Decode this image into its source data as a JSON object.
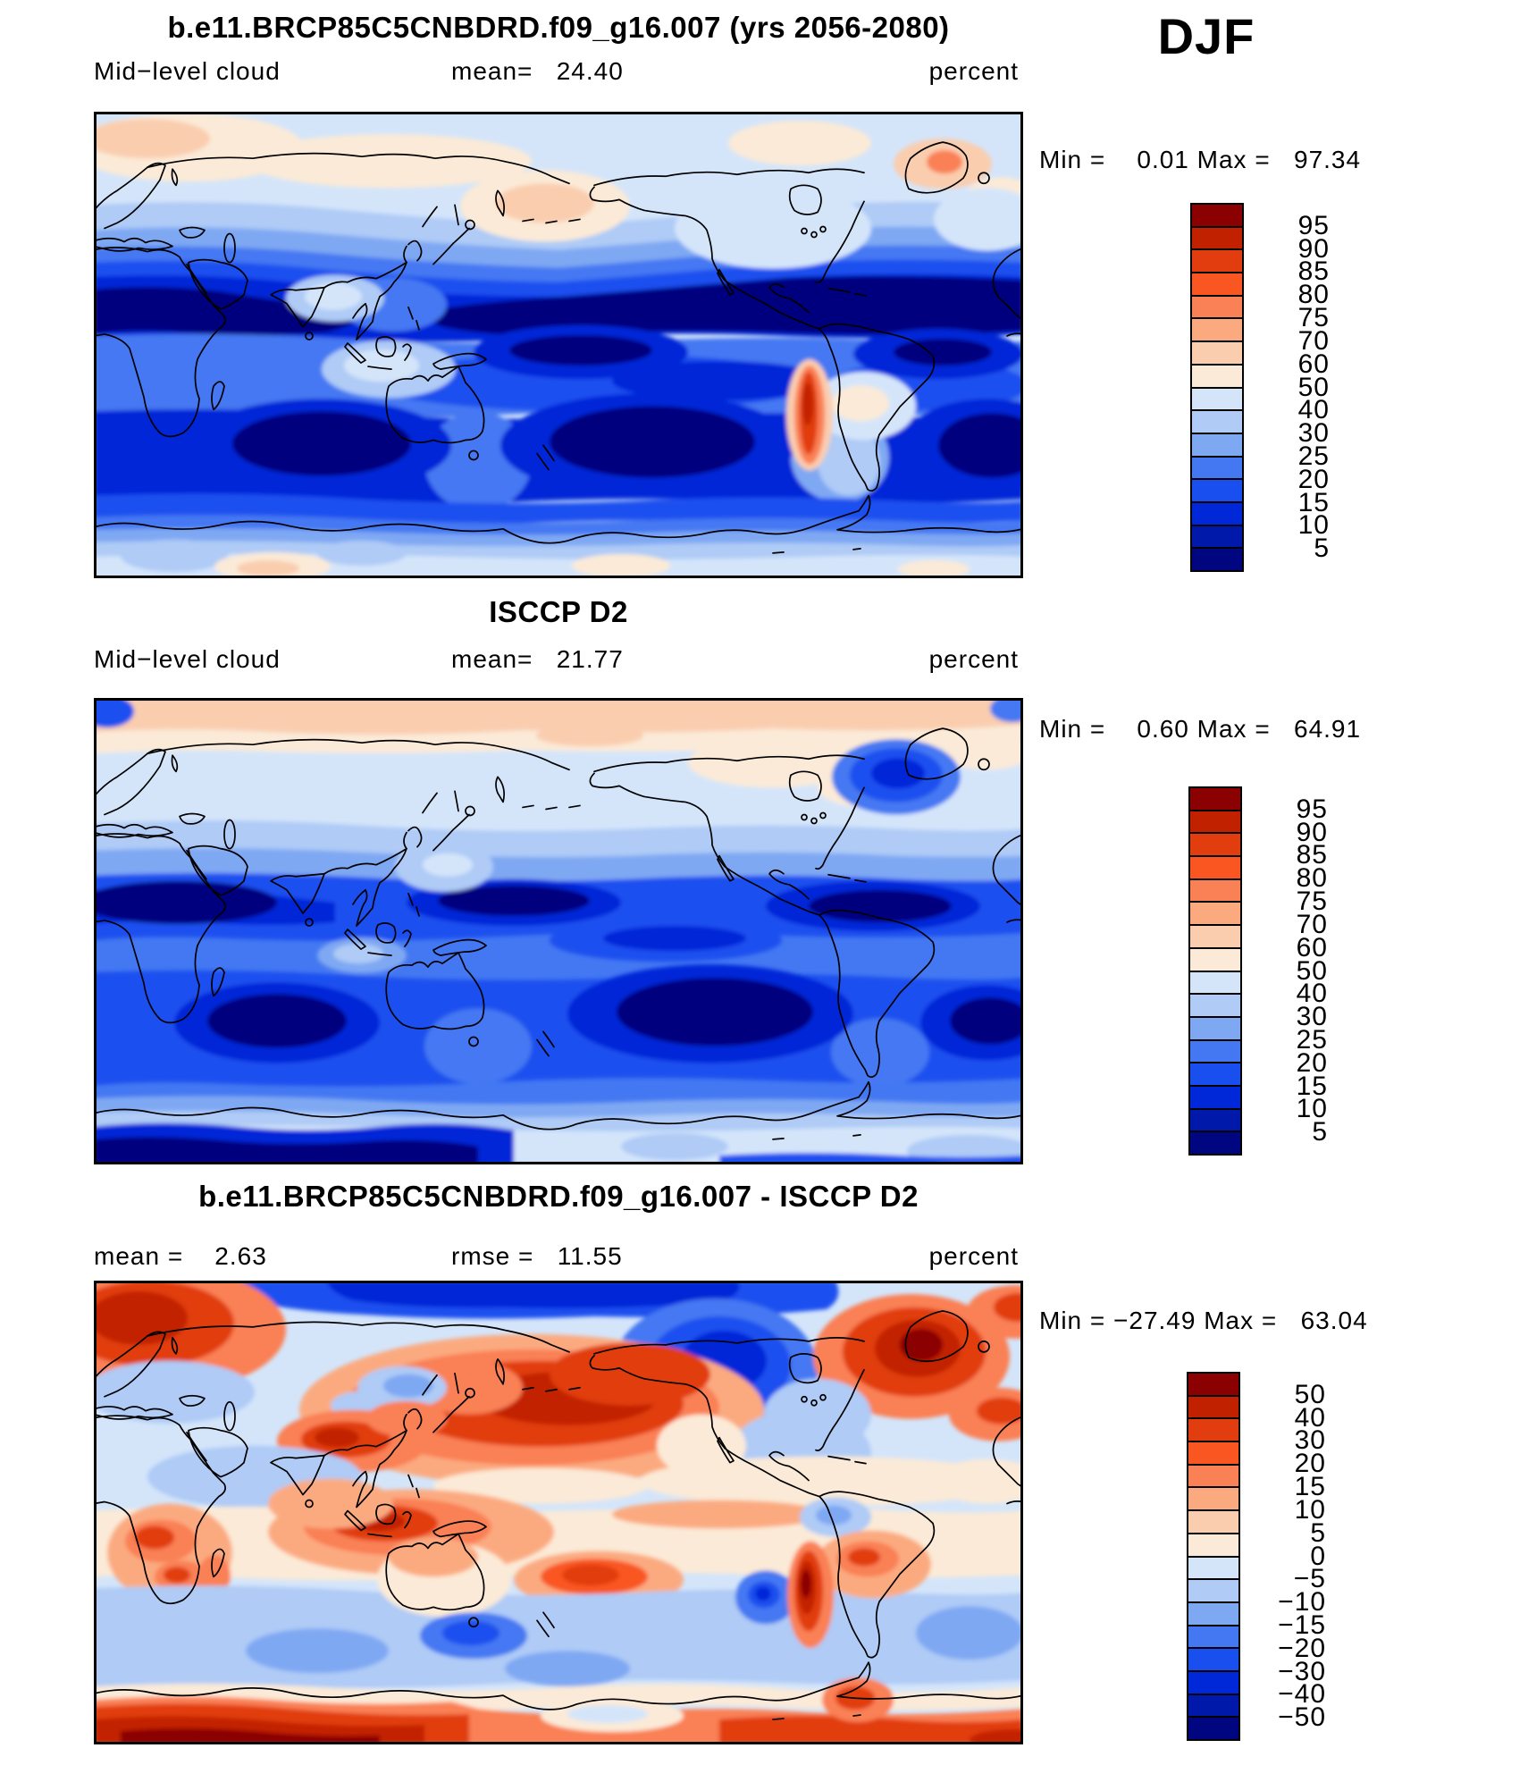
{
  "header": {
    "season": "DJF"
  },
  "panels": [
    {
      "title": "b.e11.BRCP85C5CNBDRD.f09_g16.007 (yrs 2056-2080)",
      "row_left": "Mid−level cloud",
      "row_mid": "mean=   24.40",
      "row_right": "percent",
      "minmax": "Min =    0.01 Max =   97.34",
      "colorbar_labels": [
        "95",
        "90",
        "85",
        "80",
        "75",
        "70",
        "60",
        "50",
        "40",
        "30",
        "25",
        "20",
        "15",
        "10",
        "5"
      ]
    },
    {
      "title": "ISCCP D2",
      "row_left": "Mid−level cloud",
      "row_mid": "mean=   21.77",
      "row_right": "percent",
      "minmax": "Min =    0.60 Max =   64.91",
      "colorbar_labels": [
        "95",
        "90",
        "85",
        "80",
        "75",
        "70",
        "60",
        "50",
        "40",
        "30",
        "25",
        "20",
        "15",
        "10",
        "5"
      ]
    },
    {
      "title": "b.e11.BRCP85C5CNBDRD.f09_g16.007 - ISCCP D2",
      "row_left": "mean =    2.63",
      "row_mid": "rmse =   11.55",
      "row_right": "percent",
      "minmax": "Min = −27.49 Max =   63.04",
      "colorbar_labels": [
        "50",
        "40",
        "30",
        "20",
        "15",
        "10",
        "5",
        "0",
        "−5",
        "−10",
        "−15",
        "−20",
        "−30",
        "−40",
        "−50"
      ]
    }
  ],
  "palette_high_to_low": [
    "#8B0000",
    "#C22100",
    "#E13D0F",
    "#F95621",
    "#FA8055",
    "#FBAA80",
    "#FACDAF",
    "#FBEAD7",
    "#D4E5FA",
    "#AFCBF6",
    "#7FA8F3",
    "#4478F2",
    "#1A4FEF",
    "#0128D8",
    "#0119AB",
    "#00067F"
  ],
  "chart_data": [
    {
      "type": "heatmap",
      "subtype": "global-latlon-filled-contour-map",
      "title": "b.e11.BRCP85C5CNBDRD.f09_g16.007 (yrs 2056-2080)",
      "variable": "Mid-level cloud",
      "season": "DJF",
      "units": "percent",
      "mean": 24.4,
      "min": 0.01,
      "max": 97.34,
      "contour_levels": [
        5,
        10,
        15,
        20,
        25,
        30,
        40,
        50,
        60,
        70,
        75,
        80,
        85,
        90,
        95
      ],
      "legend_position": "right",
      "projection": "cylindrical equidistant, lon 0-360E, lat 90N-90S",
      "notes": "Mostly blue (5-40%): deep navy subtropical minima over both hemispheres' ocean basins; pale/peach highs in Arctic, North Pacific and along Antarctic coast; bright red maximum (>85%) over the Andes."
    },
    {
      "type": "heatmap",
      "subtype": "global-latlon-filled-contour-map",
      "title": "ISCCP D2",
      "variable": "Mid-level cloud",
      "season": "DJF",
      "units": "percent",
      "mean": 21.77,
      "min": 0.6,
      "max": 64.91,
      "contour_levels": [
        5,
        10,
        15,
        20,
        25,
        30,
        40,
        50,
        60,
        70,
        75,
        80,
        85,
        90,
        95
      ],
      "legend_position": "right",
      "projection": "cylindrical equidistant, lon 0-360E, lat 90N-90S",
      "notes": "Peach band (50-60%) across the Arctic top edge; broad medium blues elsewhere; navy minima over N Africa/Arabia, central Pacific, Caribbean and southern ocean basins; navy band along Antarctic coast with pale interior."
    },
    {
      "type": "heatmap",
      "subtype": "global-latlon-filled-contour-difference-map",
      "title": "b.e11.BRCP85C5CNBDRD.f09_g16.007 - ISCCP D2",
      "variable": "Mid-level cloud difference",
      "season": "DJF",
      "units": "percent",
      "mean": 2.63,
      "rmse": 11.55,
      "min": -27.49,
      "max": 63.04,
      "contour_levels": [
        -50,
        -40,
        -30,
        -20,
        -15,
        -10,
        -5,
        0,
        5,
        10,
        15,
        20,
        30,
        40,
        50
      ],
      "legend_position": "right",
      "projection": "cylindrical equidistant, lon 0-360E, lat 90N-90S",
      "notes": "Large positive (red) differences over N Pacific, Scandinavia, Greenland, maritime continent, Andes and a dark-red ring along Antarctica; negative (blue) over Canadian Arctic, top-center Arctic, west of Andes and southern mid-latitude bands."
    }
  ]
}
